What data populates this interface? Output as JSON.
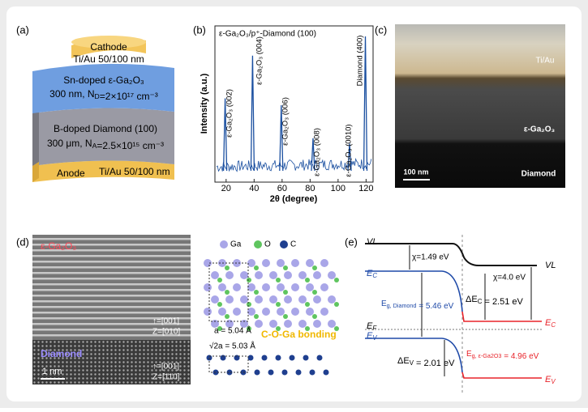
{
  "panel_labels": [
    "(a)",
    "(b)",
    "(c)",
    "(d)",
    "(e)"
  ],
  "a": {
    "cathode": "Cathode",
    "cathode_metal": "Ti/Au 50/100 nm",
    "ga2o3_title": "Sn-doped ε-Ga₂O₃",
    "ga2o3_spec": [
      "300 nm, N",
      {
        "sub": "D"
      },
      "=2×10¹⁷ cm⁻³"
    ],
    "diamond_title": "B-doped Diamond (100)",
    "diamond_spec": [
      "300 μm, N",
      {
        "sub": "A"
      },
      "=2.5×10¹⁵ cm⁻³"
    ],
    "anode": "Anode",
    "anode_metal": "Ti/Au 50/100 nm"
  },
  "b": {
    "title": "ε-Ga₂O₃/p⁺-Diamond (100)",
    "ylabel": "Intensity (a.u.)",
    "xlabel": "2θ (degree)",
    "xlim": [
      12,
      125
    ],
    "xticks": [
      20,
      40,
      60,
      80,
      100,
      120
    ],
    "peaks": [
      {
        "label": "ε-Ga₂O₃ (002)",
        "x": 19.3,
        "height": 0.55
      },
      {
        "label": "ε-Ga₂O₃ (004)",
        "x": 38.9,
        "height": 0.86
      },
      {
        "label": "ε-Ga₂O₃ (006)",
        "x": 59.4,
        "height": 0.5
      },
      {
        "label": "ε-Ga₂O₃ (008)",
        "x": 82.1,
        "height": 0.26
      },
      {
        "label": "ε-Ga₂O₃ (0010)",
        "x": 108.2,
        "height": 0.22
      },
      {
        "label": "Diamond (400)",
        "x": 119.5,
        "height": 1.0
      }
    ]
  },
  "c": {
    "metal": "Ti/Au",
    "oxide": "ε-Ga₂O₃",
    "substrate": "Diamond",
    "scale": "100 nm"
  },
  "d": {
    "oxide": "ε-Ga₂O₃",
    "substrate": "Diamond",
    "scale": "1 nm",
    "oxide_dirs": [
      "↑=[001]",
      "Z=[010]"
    ],
    "substrate_dirs": [
      "↑=[001]",
      "Z=[110]"
    ],
    "legend": [
      "Ga",
      "O",
      "C"
    ],
    "lattice_a": "a = 5.04 Å",
    "lattice_b": "√2a = 5.03 Å",
    "bonding": "C-O-Ga bonding"
  },
  "e": {
    "vl_left": "VL",
    "vl_right": "VL",
    "chi_left": "χ=1.49 eV",
    "chi_right": "χ=4.0 eV",
    "ec_left": [
      "E",
      {
        "sub": "C"
      }
    ],
    "ec_right": [
      "E",
      {
        "sub": "C"
      }
    ],
    "ef": [
      "E",
      {
        "sub": "F"
      }
    ],
    "ev_left": [
      "E",
      {
        "sub": "V"
      }
    ],
    "ev_right": [
      "E",
      {
        "sub": "V"
      }
    ],
    "eg_diamond": [
      "E",
      {
        "sub": "g, Diamond"
      },
      " = 5.46 eV"
    ],
    "eg_ga2o3": [
      "E",
      {
        "sub": "g, ε-Ga2O3"
      },
      " = 4.96 eV"
    ],
    "dec": [
      "ΔE",
      {
        "sub": "C"
      },
      " = 2.51 eV"
    ],
    "dev": [
      "ΔE",
      {
        "sub": "V"
      },
      " = 2.01 eV"
    ]
  }
}
